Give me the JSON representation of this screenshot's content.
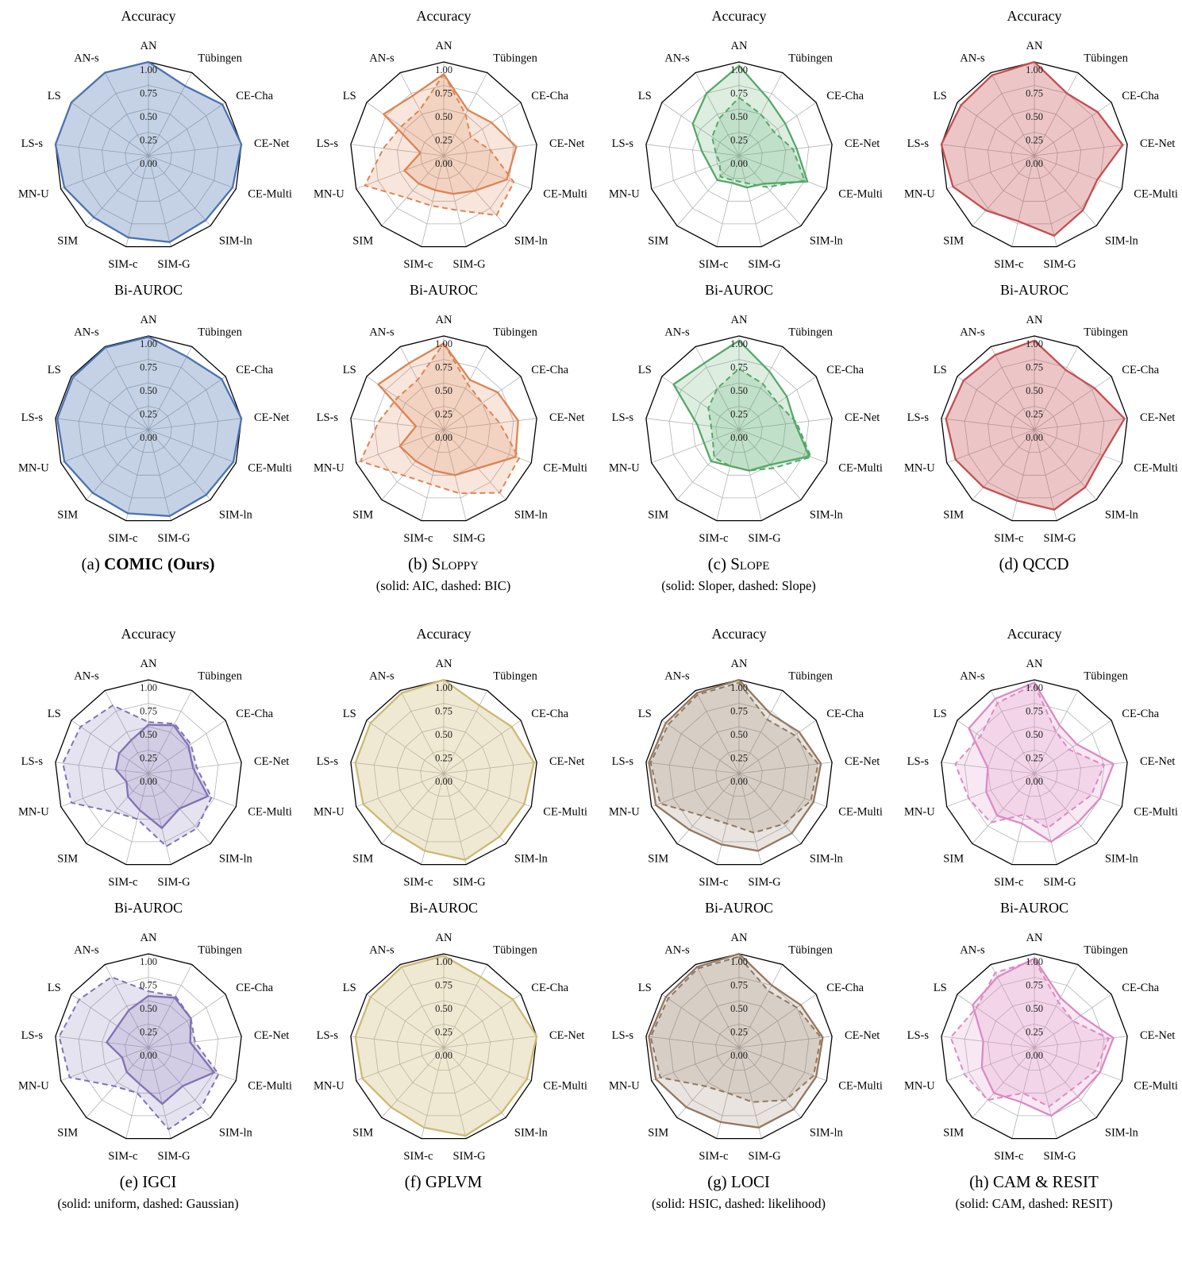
{
  "chart_data": {
    "type": "radar",
    "categories": [
      "AN",
      "Tübingen",
      "CE-Cha",
      "CE-Net",
      "CE-Multi",
      "SIM-ln",
      "SIM-G",
      "SIM-c",
      "SIM",
      "MN-U",
      "LS-s",
      "LS",
      "AN-s"
    ],
    "ticks": [
      0,
      0.25,
      0.5,
      0.75,
      1
    ],
    "tick_labels": [
      "0.00",
      "0.25",
      "0.50",
      "0.75",
      "1.00"
    ],
    "rlim": [
      0,
      1
    ],
    "grid": true,
    "legend_position": "none",
    "panels": [
      {
        "id": "a",
        "caption_prefix": "(a)",
        "caption_name": "COMIC (Ours)",
        "subcaption": "",
        "color": "#4C72B0",
        "charts": [
          {
            "title": "Accuracy",
            "series": [
              {
                "name": "COMIC",
                "dashed": false,
                "values": [
                  1.0,
                  0.84,
                  0.96,
                  1.0,
                  0.96,
                  0.92,
                  0.95,
                  0.9,
                  0.88,
                  0.96,
                  1.0,
                  1.0,
                  1.0
                ]
              }
            ]
          },
          {
            "title": "Bi-AUROC",
            "series": [
              {
                "name": "COMIC",
                "dashed": false,
                "values": [
                  0.99,
                  0.88,
                  0.95,
                  1.0,
                  0.97,
                  0.93,
                  0.95,
                  0.92,
                  0.9,
                  0.96,
                  0.98,
                  0.98,
                  0.99
                ]
              }
            ]
          }
        ]
      },
      {
        "id": "b",
        "caption_prefix": "(b)",
        "caption_name": "Sloppy",
        "subcaption": "(solid: AIC, dashed: BIC)",
        "color": "#DD8452",
        "charts": [
          {
            "title": "Accuracy",
            "series": [
              {
                "name": "AIC",
                "dashed": false,
                "values": [
                  0.87,
                  0.55,
                  0.62,
                  0.78,
                  0.72,
                  0.5,
                  0.42,
                  0.38,
                  0.4,
                  0.45,
                  0.25,
                  0.78,
                  0.72
                ]
              },
              {
                "name": "BIC",
                "dashed": true,
                "values": [
                  0.87,
                  0.5,
                  0.35,
                  0.5,
                  0.8,
                  0.85,
                  0.6,
                  0.55,
                  0.6,
                  0.9,
                  0.65,
                  0.55,
                  0.55
                ]
              }
            ]
          },
          {
            "title": "Bi-AUROC",
            "series": [
              {
                "name": "AIC",
                "dashed": false,
                "values": [
                  0.92,
                  0.6,
                  0.7,
                  0.8,
                  0.82,
                  0.55,
                  0.5,
                  0.45,
                  0.45,
                  0.5,
                  0.3,
                  0.85,
                  0.8
                ]
              },
              {
                "name": "BIC",
                "dashed": true,
                "values": [
                  0.92,
                  0.55,
                  0.5,
                  0.6,
                  0.86,
                  0.9,
                  0.7,
                  0.6,
                  0.65,
                  0.95,
                  0.7,
                  0.6,
                  0.6
                ]
              }
            ]
          }
        ]
      },
      {
        "id": "c",
        "caption_prefix": "(c)",
        "caption_name": "Slope",
        "subcaption": "(solid: Sloper, dashed: Slope)",
        "color": "#55A868",
        "charts": [
          {
            "title": "Accuracy",
            "series": [
              {
                "name": "Sloper",
                "dashed": false,
                "values": [
                  0.96,
                  0.68,
                  0.6,
                  0.62,
                  0.78,
                  0.4,
                  0.35,
                  0.3,
                  0.35,
                  0.33,
                  0.4,
                  0.6,
                  0.75
                ]
              },
              {
                "name": "Slope",
                "dashed": true,
                "values": [
                  0.62,
                  0.5,
                  0.45,
                  0.58,
                  0.75,
                  0.45,
                  0.3,
                  0.27,
                  0.3,
                  0.22,
                  0.25,
                  0.35,
                  0.45
                ]
              }
            ]
          },
          {
            "title": "Bi-AUROC",
            "series": [
              {
                "name": "Sloper",
                "dashed": false,
                "values": [
                  0.95,
                  0.7,
                  0.62,
                  0.6,
                  0.8,
                  0.5,
                  0.45,
                  0.4,
                  0.45,
                  0.4,
                  0.45,
                  0.85,
                  0.8
                ]
              },
              {
                "name": "Slope",
                "dashed": true,
                "values": [
                  0.65,
                  0.55,
                  0.5,
                  0.62,
                  0.82,
                  0.55,
                  0.45,
                  0.4,
                  0.4,
                  0.3,
                  0.3,
                  0.4,
                  0.5
                ]
              }
            ]
          }
        ]
      },
      {
        "id": "d",
        "caption_prefix": "(d)",
        "caption_name": "QCCD",
        "subcaption": "",
        "color": "#C44E52",
        "charts": [
          {
            "title": "Accuracy",
            "series": [
              {
                "name": "QCCD",
                "dashed": false,
                "values": [
                  1.0,
                  0.75,
                  0.82,
                  0.95,
                  0.72,
                  0.78,
                  0.88,
                  0.72,
                  0.78,
                  0.93,
                  1.0,
                  0.95,
                  0.97
                ]
              }
            ]
          },
          {
            "title": "Bi-AUROC",
            "series": [
              {
                "name": "QCCD",
                "dashed": false,
                "values": [
                  0.95,
                  0.72,
                  0.78,
                  0.97,
                  0.78,
                  0.82,
                  0.88,
                  0.78,
                  0.82,
                  0.9,
                  0.95,
                  0.92,
                  0.9
                ]
              }
            ]
          }
        ]
      },
      {
        "id": "e",
        "caption_prefix": "(e)",
        "caption_name": "IGCI",
        "subcaption": "(solid: uniform, dashed: Gaussian)",
        "color": "#8172B3",
        "charts": [
          {
            "title": "Accuracy",
            "series": [
              {
                "name": "uniform",
                "dashed": false,
                "values": [
                  0.52,
                  0.58,
                  0.52,
                  0.48,
                  0.68,
                  0.5,
                  0.6,
                  0.4,
                  0.33,
                  0.25,
                  0.35,
                  0.38,
                  0.4
                ]
              },
              {
                "name": "Gaussian",
                "dashed": true,
                "values": [
                  0.55,
                  0.6,
                  0.55,
                  0.52,
                  0.72,
                  0.78,
                  0.8,
                  0.5,
                  0.55,
                  0.88,
                  0.92,
                  0.88,
                  0.82
                ]
              }
            ]
          },
          {
            "title": "Bi-AUROC",
            "series": [
              {
                "name": "uniform",
                "dashed": false,
                "values": [
                  0.55,
                  0.6,
                  0.55,
                  0.45,
                  0.75,
                  0.55,
                  0.62,
                  0.4,
                  0.35,
                  0.3,
                  0.45,
                  0.4,
                  0.45
                ]
              },
              {
                "name": "Gaussian",
                "dashed": true,
                "values": [
                  0.6,
                  0.62,
                  0.55,
                  0.5,
                  0.8,
                  0.85,
                  0.9,
                  0.5,
                  0.55,
                  0.9,
                  0.96,
                  0.9,
                  0.85
                ]
              }
            ]
          }
        ]
      },
      {
        "id": "f",
        "caption_prefix": "(f)",
        "caption_name": "GPLVM",
        "subcaption": "",
        "color": "#CCB974",
        "charts": [
          {
            "title": "Accuracy",
            "series": [
              {
                "name": "GPLVM",
                "dashed": false,
                "values": [
                  1.0,
                  0.82,
                  0.88,
                  0.97,
                  0.92,
                  0.9,
                  0.95,
                  0.85,
                  0.82,
                  0.92,
                  0.95,
                  0.95,
                  0.97
                ]
              }
            ]
          },
          {
            "title": "Bi-AUROC",
            "series": [
              {
                "name": "GPLVM",
                "dashed": false,
                "values": [
                  0.98,
                  0.85,
                  0.9,
                  1.0,
                  0.95,
                  0.93,
                  0.97,
                  0.88,
                  0.85,
                  0.93,
                  0.95,
                  0.95,
                  0.97
                ]
              }
            ]
          }
        ]
      },
      {
        "id": "g",
        "caption_prefix": "(g)",
        "caption_name": "LOCI",
        "subcaption": "(solid: HSIC, dashed: likelihood)",
        "color": "#937860",
        "charts": [
          {
            "title": "Accuracy",
            "series": [
              {
                "name": "HSIC",
                "dashed": false,
                "values": [
                  1.0,
                  0.72,
                  0.78,
                  0.88,
                  0.85,
                  0.85,
                  0.85,
                  0.78,
                  0.8,
                  0.95,
                  0.97,
                  0.95,
                  0.97
                ]
              },
              {
                "name": "likelihood",
                "dashed": true,
                "values": [
                  0.97,
                  0.65,
                  0.72,
                  0.85,
                  0.82,
                  0.72,
                  0.65,
                  0.55,
                  0.6,
                  0.9,
                  0.95,
                  0.92,
                  0.95
                ]
              }
            ]
          },
          {
            "title": "Bi-AUROC",
            "series": [
              {
                "name": "HSIC",
                "dashed": false,
                "values": [
                  1.0,
                  0.75,
                  0.8,
                  0.9,
                  0.88,
                  0.88,
                  0.88,
                  0.82,
                  0.85,
                  0.95,
                  0.97,
                  0.95,
                  0.97
                ]
              },
              {
                "name": "likelihood",
                "dashed": true,
                "values": [
                  0.97,
                  0.68,
                  0.75,
                  0.88,
                  0.85,
                  0.75,
                  0.6,
                  0.5,
                  0.55,
                  0.9,
                  0.95,
                  0.92,
                  0.95
                ]
              }
            ]
          }
        ]
      },
      {
        "id": "h",
        "caption_prefix": "(h)",
        "caption_name": "CAM & RESIT",
        "subcaption": "(solid: CAM, dashed: RESIT)",
        "color": "#DA8BC3",
        "charts": [
          {
            "title": "Accuracy",
            "series": [
              {
                "name": "CAM",
                "dashed": false,
                "values": [
                  0.97,
                  0.58,
                  0.55,
                  0.85,
                  0.75,
                  0.7,
                  0.75,
                  0.55,
                  0.6,
                  0.55,
                  0.5,
                  0.85,
                  0.9
                ]
              },
              {
                "name": "RESIT",
                "dashed": true,
                "values": [
                  0.95,
                  0.5,
                  0.45,
                  0.75,
                  0.65,
                  0.55,
                  0.6,
                  0.45,
                  0.7,
                  0.75,
                  0.85,
                  0.7,
                  0.85
                ]
              }
            ]
          },
          {
            "title": "Bi-AUROC",
            "series": [
              {
                "name": "CAM",
                "dashed": false,
                "values": [
                  0.95,
                  0.6,
                  0.6,
                  0.85,
                  0.75,
                  0.7,
                  0.75,
                  0.6,
                  0.65,
                  0.6,
                  0.55,
                  0.8,
                  0.85
                ]
              },
              {
                "name": "RESIT",
                "dashed": true,
                "values": [
                  0.93,
                  0.55,
                  0.5,
                  0.8,
                  0.7,
                  0.6,
                  0.65,
                  0.5,
                  0.75,
                  0.8,
                  0.9,
                  0.75,
                  0.9
                ]
              }
            ]
          }
        ]
      }
    ]
  }
}
